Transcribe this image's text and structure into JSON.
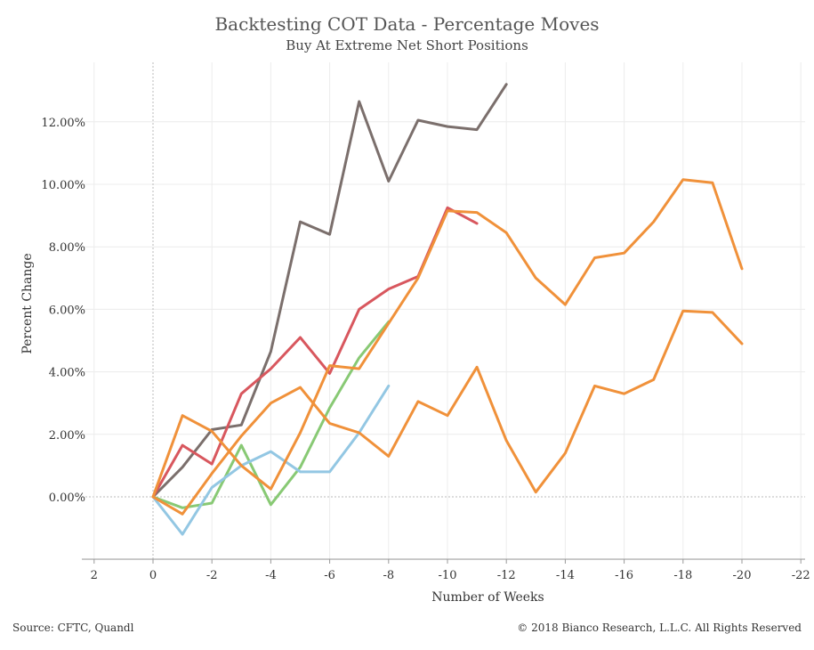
{
  "title": "Backtesting COT Data - Percentage Moves",
  "subtitle": "Buy At Extreme Net Short Positions",
  "footer": {
    "source": "Source: CFTC, Quandl",
    "copyright": "© 2018 Bianco Research, L.L.C. All Rights Reserved"
  },
  "chart_data": {
    "type": "line",
    "title": "Backtesting COT Data - Percentage Moves",
    "subtitle": "Buy At Extreme Net Short Positions",
    "xlabel": "Number of Weeks",
    "ylabel": "Percent Change",
    "x_reversed": true,
    "xlim": [
      2,
      -22
    ],
    "ylim": [
      -2.0,
      14.0
    ],
    "x_ticks": [
      2,
      0,
      -2,
      -4,
      -6,
      -8,
      -10,
      -12,
      -14,
      -16,
      -18,
      -20,
      -22
    ],
    "y_ticks": [
      0,
      2,
      4,
      6,
      8,
      10,
      12
    ],
    "y_tick_labels": [
      "0.00%",
      "2.00%",
      "4.00%",
      "6.00%",
      "8.00%",
      "10.00%",
      "12.00%"
    ],
    "grid": true,
    "series": [
      {
        "color": "#7b6f6c",
        "x": [
          0,
          -1,
          -2,
          -3,
          -4,
          -5,
          -6,
          -7,
          -8,
          -9,
          -10,
          -11,
          -12
        ],
        "y": [
          0.0,
          0.95,
          2.15,
          2.3,
          4.65,
          8.8,
          8.4,
          12.65,
          10.1,
          12.05,
          11.85,
          11.75,
          13.2
        ]
      },
      {
        "color": "#d8575e",
        "x": [
          0,
          -1,
          -2,
          -3,
          -4,
          -5,
          -6,
          -7,
          -8,
          -9,
          -10,
          -11
        ],
        "y": [
          0.0,
          1.65,
          1.05,
          3.3,
          4.1,
          5.1,
          3.95,
          6.0,
          6.65,
          7.05,
          9.25,
          8.75
        ]
      },
      {
        "color": "#88c974",
        "x": [
          0,
          -1,
          -2,
          -3,
          -4,
          -5,
          -6,
          -7,
          -8
        ],
        "y": [
          0.0,
          -0.35,
          -0.2,
          1.65,
          -0.25,
          0.95,
          2.85,
          4.45,
          5.6
        ]
      },
      {
        "color": "#93c7e3",
        "x": [
          0,
          -1,
          -2,
          -3,
          -4,
          -5,
          -6,
          -7,
          -8
        ],
        "y": [
          0.0,
          -1.2,
          0.3,
          1.0,
          1.45,
          0.8,
          0.8,
          2.05,
          3.55
        ]
      },
      {
        "color": "#f0913a",
        "x": [
          0,
          -1,
          -2,
          -3,
          -4,
          -5,
          -6,
          -7,
          -8,
          -9,
          -10,
          -11,
          -12,
          -13,
          -14,
          -15,
          -16,
          -17,
          -18,
          -19,
          -20
        ],
        "y": [
          0.0,
          -0.55,
          0.75,
          1.95,
          3.0,
          3.5,
          2.35,
          2.05,
          1.3,
          3.05,
          2.6,
          4.15,
          1.8,
          0.15,
          1.4,
          3.55,
          3.3,
          3.75,
          5.95,
          5.9,
          4.9
        ]
      },
      {
        "color": "#f0913a",
        "x": [
          0,
          -1,
          -2,
          -3,
          -4,
          -5,
          -6,
          -7,
          -8,
          -9,
          -10,
          -11,
          -12,
          -13,
          -14,
          -15,
          -16,
          -17,
          -18,
          -19,
          -20
        ],
        "y": [
          0.0,
          2.6,
          2.1,
          1.0,
          0.25,
          2.05,
          4.2,
          4.1,
          5.55,
          7.0,
          9.15,
          9.1,
          8.45,
          7.0,
          6.15,
          7.65,
          7.8,
          8.8,
          10.15,
          10.05,
          7.3
        ]
      }
    ]
  }
}
